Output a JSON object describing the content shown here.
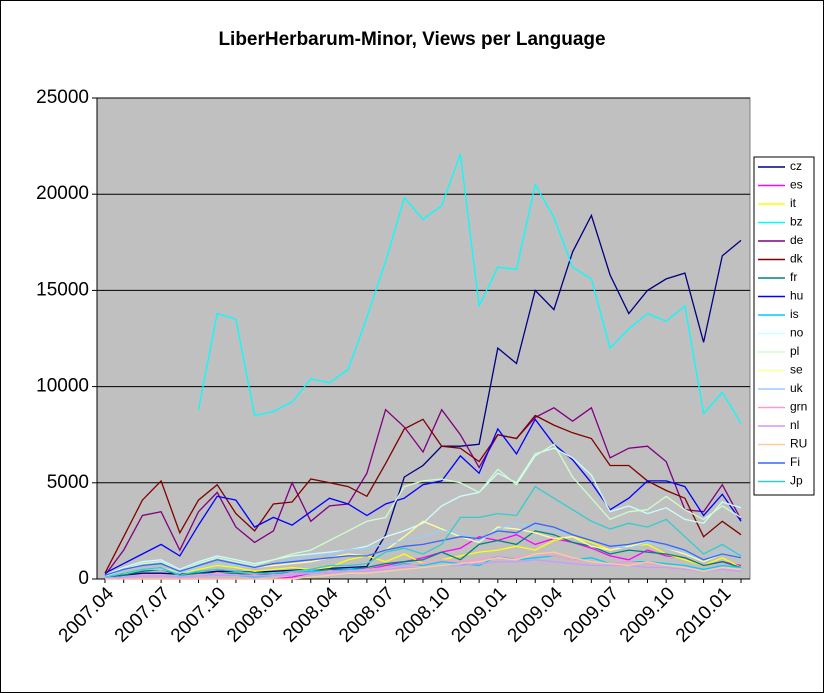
{
  "chart_data": {
    "type": "line",
    "title": "LiberHerbarum-Minor, Views per Language",
    "categories": [
      "2007.04",
      null,
      null,
      "2007.07",
      null,
      null,
      "2007.10",
      null,
      null,
      "2008.01",
      null,
      null,
      "2008.04",
      null,
      null,
      "2008.07",
      null,
      null,
      "2008.10",
      null,
      null,
      "2009.01",
      null,
      null,
      "2009.04",
      null,
      null,
      "2009.07",
      null,
      null,
      "2009.10",
      null,
      null,
      "2010.01",
      null
    ],
    "ylim": [
      0,
      25000
    ],
    "yticks": [
      0,
      5000,
      10000,
      15000,
      20000,
      25000
    ],
    "grid": true,
    "legend": "right",
    "series": [
      {
        "name": "cz",
        "color": "#000080",
        "values": [
          100,
          200,
          300,
          300,
          250,
          300,
          400,
          400,
          350,
          400,
          450,
          500,
          550,
          600,
          650,
          2300,
          5300,
          5900,
          6900,
          6900,
          7000,
          12000,
          11200,
          15000,
          14000,
          17000,
          18900,
          15800,
          13800,
          15000,
          15600,
          15900,
          12300,
          16800,
          17600
        ]
      },
      {
        "name": "es",
        "color": "#FF00FF",
        "values": [
          0,
          0,
          0,
          0,
          0,
          0,
          0,
          0,
          0,
          0,
          100,
          300,
          400,
          500,
          500,
          700,
          900,
          1100,
          1400,
          1600,
          2200,
          2000,
          2300,
          1800,
          2100,
          1900,
          1600,
          1200,
          1000,
          1500,
          1200,
          1100,
          700,
          900,
          700
        ]
      },
      {
        "name": "it",
        "color": "#FFFF00",
        "values": [
          100,
          300,
          500,
          600,
          300,
          500,
          700,
          600,
          400,
          500,
          600,
          500,
          600,
          1000,
          1200,
          900,
          1300,
          800,
          1000,
          1200,
          1400,
          1500,
          1700,
          1500,
          2000,
          2200,
          1900,
          1500,
          1700,
          1800,
          1300,
          1000,
          700,
          1100,
          600
        ]
      },
      {
        "name": "bz",
        "color": "#00FFFF",
        "values": [
          null,
          null,
          null,
          null,
          null,
          8800,
          13800,
          13500,
          8500,
          8700,
          9200,
          10400,
          10200,
          10900,
          13600,
          16500,
          19800,
          18700,
          19400,
          22100,
          14200,
          16200,
          16100,
          20500,
          18800,
          16200,
          15600,
          12000,
          13000,
          13800,
          13400,
          14200,
          8600,
          9700,
          8100
        ]
      },
      {
        "name": "de",
        "color": "#800080",
        "values": [
          200,
          1500,
          3300,
          3500,
          1500,
          3500,
          4500,
          2700,
          1900,
          2500,
          5000,
          3000,
          3800,
          3900,
          5500,
          8800,
          7900,
          6600,
          8800,
          7500,
          5800,
          7500,
          7300,
          8400,
          8900,
          8200,
          8900,
          6300,
          6800,
          6900,
          6100,
          3600,
          3500,
          4900,
          3100
        ]
      },
      {
        "name": "dk",
        "color": "#800000",
        "values": [
          300,
          2200,
          4100,
          5100,
          2400,
          4100,
          4900,
          3400,
          2500,
          3900,
          4000,
          5200,
          5000,
          4800,
          4300,
          6000,
          7800,
          8300,
          6900,
          6800,
          6100,
          7500,
          7300,
          8500,
          8000,
          7600,
          7300,
          5900,
          5900,
          5100,
          4600,
          4200,
          2200,
          3000,
          2300
        ]
      },
      {
        "name": "fr",
        "color": "#008080",
        "values": [
          50,
          200,
          400,
          500,
          200,
          300,
          300,
          300,
          200,
          300,
          300,
          400,
          500,
          500,
          600,
          800,
          900,
          1000,
          1400,
          1000,
          1800,
          2000,
          1800,
          2500,
          2300,
          1900,
          1700,
          1300,
          1500,
          1400,
          1300,
          1100,
          700,
          900,
          600
        ]
      },
      {
        "name": "hu",
        "color": "#0000FF",
        "values": [
          300,
          800,
          1300,
          1800,
          1200,
          2800,
          4300,
          4100,
          2700,
          3200,
          2800,
          3500,
          4200,
          3900,
          3300,
          3900,
          4200,
          4900,
          5100,
          6400,
          5500,
          7800,
          6500,
          8300,
          7000,
          6200,
          5000,
          3600,
          4200,
          5100,
          5100,
          4800,
          3300,
          4400,
          3000
        ]
      },
      {
        "name": "is",
        "color": "#00CCFF",
        "values": [
          0,
          100,
          200,
          200,
          100,
          200,
          200,
          200,
          100,
          200,
          300,
          400,
          400,
          500,
          500,
          600,
          800,
          700,
          900,
          800,
          700,
          1200,
          1000,
          1100,
          1200,
          1000,
          1100,
          800,
          900,
          900,
          800,
          700,
          500,
          700,
          600
        ]
      },
      {
        "name": "no",
        "color": "#CCFFFF",
        "values": [
          200,
          600,
          900,
          1000,
          500,
          900,
          1200,
          1000,
          800,
          1000,
          1200,
          1300,
          1400,
          1500,
          1700,
          2200,
          2500,
          2900,
          3800,
          4300,
          4500,
          5500,
          5000,
          6500,
          6800,
          6300,
          5400,
          3500,
          3800,
          3400,
          3700,
          3100,
          2900,
          4000,
          3700
        ]
      },
      {
        "name": "pl",
        "color": "#CCFFCC",
        "values": [
          150,
          500,
          800,
          900,
          400,
          800,
          1100,
          900,
          700,
          1000,
          1300,
          1500,
          2000,
          2500,
          3000,
          3200,
          4800,
          5100,
          5200,
          5000,
          4500,
          5700,
          4900,
          6400,
          7000,
          5300,
          4200,
          3100,
          3500,
          3600,
          4300,
          3600,
          3100,
          3800,
          3200
        ]
      },
      {
        "name": "se",
        "color": "#FFFF99",
        "values": [
          100,
          300,
          500,
          600,
          300,
          600,
          800,
          700,
          600,
          700,
          800,
          900,
          1100,
          1300,
          1200,
          1500,
          2200,
          3000,
          2600,
          2200,
          1900,
          2700,
          2600,
          2400,
          2100,
          2200,
          1700,
          1500,
          1700,
          1900,
          1600,
          1300,
          900,
          1300,
          1100
        ]
      },
      {
        "name": "uk",
        "color": "#99CCFF",
        "values": [
          100,
          300,
          500,
          500,
          300,
          600,
          800,
          700,
          600,
          800,
          1000,
          1200,
          1300,
          1500,
          1600,
          1800,
          2000,
          2200,
          2500,
          2400,
          2000,
          2600,
          2900,
          2700,
          2500,
          2300,
          2000,
          1700,
          1600,
          1900,
          1600,
          1400,
          1000,
          1500,
          1300
        ]
      },
      {
        "name": "grn",
        "color": "#FF99CC",
        "values": [
          50,
          100,
          200,
          200,
          100,
          200,
          300,
          200,
          200,
          200,
          300,
          300,
          400,
          400,
          500,
          600,
          700,
          800,
          1000,
          900,
          1000,
          1200,
          1100,
          1300,
          1200,
          1000,
          900,
          800,
          900,
          800,
          700,
          600,
          400,
          500,
          400
        ]
      },
      {
        "name": "nl",
        "color": "#CC99FF",
        "values": [
          50,
          100,
          150,
          150,
          100,
          150,
          200,
          200,
          150,
          200,
          200,
          300,
          300,
          400,
          400,
          500,
          600,
          600,
          700,
          700,
          800,
          900,
          900,
          1000,
          900,
          800,
          700,
          700,
          700,
          600,
          600,
          500,
          400,
          500,
          400
        ]
      },
      {
        "name": "RU",
        "color": "#FFCC99",
        "values": [
          0,
          0,
          0,
          0,
          0,
          0,
          0,
          0,
          0,
          0,
          0,
          100,
          200,
          300,
          300,
          400,
          500,
          600,
          700,
          800,
          900,
          1100,
          1000,
          1300,
          1400,
          1100,
          900,
          800,
          700,
          900,
          700,
          600,
          400,
          600,
          500
        ]
      },
      {
        "name": "Fi",
        "color": "#3366FF",
        "values": [
          200,
          500,
          700,
          800,
          400,
          700,
          1000,
          800,
          600,
          800,
          900,
          1000,
          1100,
          1200,
          1200,
          1500,
          1700,
          1800,
          2000,
          2200,
          2100,
          2500,
          2400,
          2900,
          2700,
          2300,
          2000,
          1700,
          1800,
          2000,
          1800,
          1500,
          1000,
          1300,
          1100
        ]
      },
      {
        "name": "Jp",
        "color": "#33CCCC",
        "values": [
          100,
          300,
          500,
          600,
          200,
          400,
          500,
          400,
          300,
          300,
          400,
          500,
          700,
          700,
          800,
          1400,
          1600,
          1300,
          1800,
          3200,
          3200,
          3400,
          3300,
          4800,
          4200,
          3600,
          3000,
          2600,
          2900,
          2700,
          3100,
          2200,
          1300,
          1800,
          1200
        ]
      }
    ]
  }
}
